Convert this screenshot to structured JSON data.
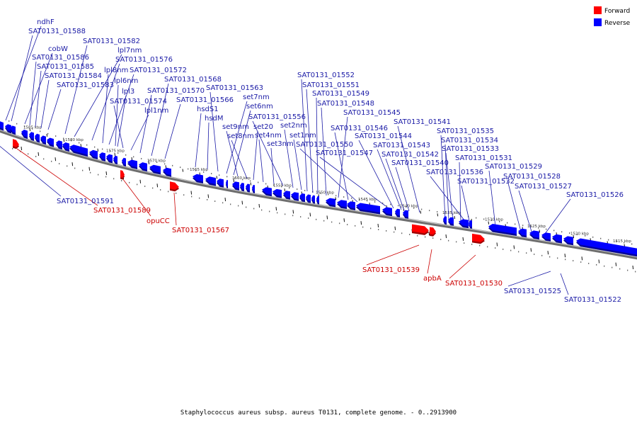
{
  "caption": "Staphylococcus aureus subsp. aureus T0131, complete genome. - 0..2913900",
  "legend": [
    {
      "label": "Forward",
      "color": "#ff0000"
    },
    {
      "label": "Reverse",
      "color": "#0000ff"
    }
  ],
  "colors": {
    "forward": "#ff0000",
    "forward_dark": "#a00000",
    "reverse": "#0000ff",
    "reverse_dark": "#00009a",
    "backbone": "#9a9a9a"
  },
  "scale_labels": [
    "1585 kbp",
    "1580 kbp",
    "1575 kbp",
    "1570 kbp",
    "1565 kbp",
    "1560 kbp",
    "1555 kbp",
    "1550 kbp",
    "1545 kbp",
    "1540 kbp",
    "1535 kbp",
    "1530 kbp",
    "1525 kbp",
    "1520 kbp",
    "1515 kbp"
  ],
  "reverse_labels": [
    "ndhF",
    "SAT0131_01588",
    "cobW",
    "SAT0131_01586",
    "SAT0131_01585",
    "SAT0131_01584",
    "SAT0131_01583",
    "SAT0131_01582",
    "lpl7nm",
    "SAT0131_01576",
    "lpl8nm",
    "SAT0131_01572",
    "lpl6nm",
    "lpl3",
    "SAT0131_01574",
    "lpl1nm",
    "SAT0131_01570",
    "SAT0131_01568",
    "SAT0131_01566",
    "hsdS1",
    "hsdM",
    "SAT0131_01563",
    "set7nm",
    "set6nm",
    "set9nm",
    "set8nm",
    "set20",
    "set4nm",
    "set3nm",
    "SAT0131_01556",
    "set2nm",
    "set1nm",
    "SAT0131_01552",
    "SAT0131_01551",
    "SAT0131_01549",
    "SAT0131_01548",
    "SAT0131_01545",
    "SAT0131_01546",
    "SAT0131_01550",
    "SAT0131_01547",
    "SAT0131_01544",
    "SAT0131_01543",
    "SAT0131_01542",
    "SAT0131_01540",
    "SAT0131_01541",
    "SAT0131_01535",
    "SAT0131_01534",
    "SAT0131_01533",
    "SAT0131_01531",
    "SAT0131_01536",
    "SAT0131_01532",
    "SAT0131_01529",
    "SAT0131_01528",
    "SAT0131_01527",
    "SAT0131_01526",
    "SAT0131_01591",
    "SAT0131_01525",
    "SAT0131_01522"
  ],
  "forward_labels": [
    "SAT0131_01589",
    "opuCC",
    "SAT0131_01567",
    "SAT0131_01539",
    "apbA",
    "SAT0131_01530"
  ]
}
